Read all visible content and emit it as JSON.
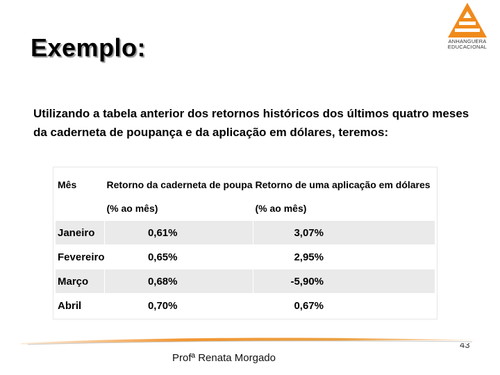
{
  "slide": {
    "title": "Exemplo:",
    "body": "Utilizando a tabela anterior dos retornos históricos dos últimos quatro meses da caderneta de poupança e da aplicação em dólares, teremos:",
    "footer": "Profª Renata Morgado",
    "page_number": "43"
  },
  "logo": {
    "line1": "ANHANGUERA",
    "line2": "EDUCACIONAL",
    "color": "#f08a1c"
  },
  "table": {
    "headers": [
      {
        "line1": "Mês",
        "line2": ""
      },
      {
        "line1": "Retorno da caderneta de poupança",
        "line2": "(% ao mês)"
      },
      {
        "line1": "Retorno de uma aplicação em dólares",
        "line2": "(% ao mês)"
      }
    ],
    "rows": [
      {
        "month": "Janeiro",
        "savings": "0,61%",
        "dollars": "3,07%"
      },
      {
        "month": "Fevereiro",
        "savings": "0,65%",
        "dollars": "2,95%"
      },
      {
        "month": "Março",
        "savings": "0,68%",
        "dollars": "-5,90%"
      },
      {
        "month": "Abril",
        "savings": "0,70%",
        "dollars": "0,67%"
      }
    ]
  },
  "colors": {
    "accent": "#f08a1c",
    "row_shade": "#eaeaea"
  }
}
